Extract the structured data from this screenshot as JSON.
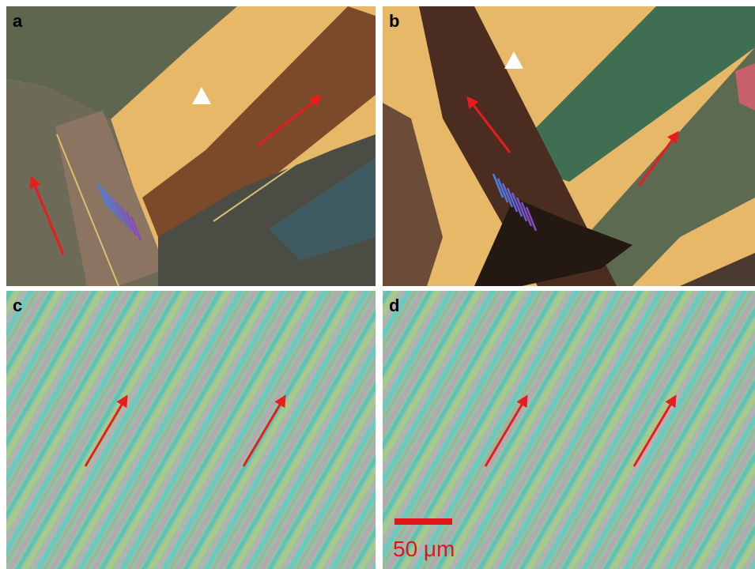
{
  "panels": [
    {
      "label": "a"
    },
    {
      "label": "b"
    },
    {
      "label": "c"
    },
    {
      "label": "d"
    }
  ],
  "scale_bar": {
    "label": "50 μm"
  }
}
